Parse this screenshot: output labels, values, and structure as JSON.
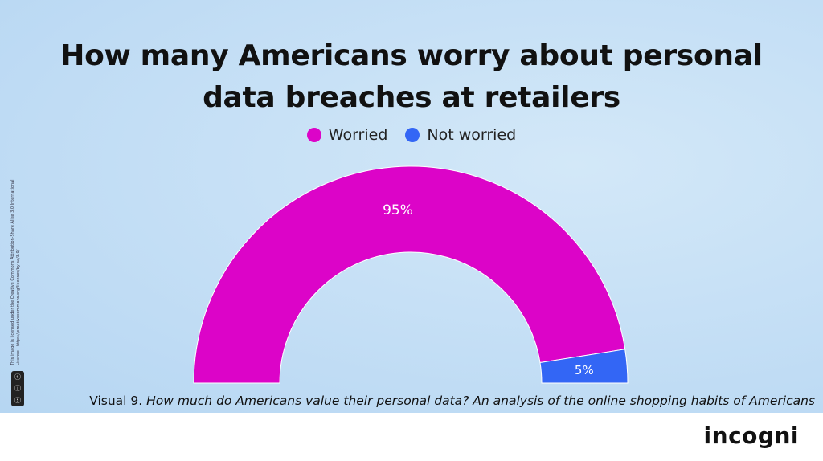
{
  "chart_data": {
    "type": "pie",
    "variant": "half-donut",
    "title": "How many Americans worry about personal data breaches at retailers",
    "title_lines": [
      "How many Americans worry about personal",
      "data breaches at retailers"
    ],
    "legend": [
      "Worried",
      "Not worried"
    ],
    "legend_position": "top-center",
    "series": [
      {
        "name": "Worried",
        "value": 95,
        "label": "95%",
        "color": "#dc04c8"
      },
      {
        "name": "Not worried",
        "value": 5,
        "label": "5%",
        "color": "#3366f5"
      }
    ]
  },
  "caption": {
    "prefix": "Visual 9. ",
    "italic": "How much do Americans value their personal data? An analysis of the online shopping habits of Americans"
  },
  "license": "This image is licensed under the Creative Commons Attribution-Share Alike 3.0 International License - https://creativecommons.org/licenses/by-sa/3.0/",
  "cc_badge": [
    "cc",
    "by",
    "sa"
  ],
  "logo": "incogni"
}
